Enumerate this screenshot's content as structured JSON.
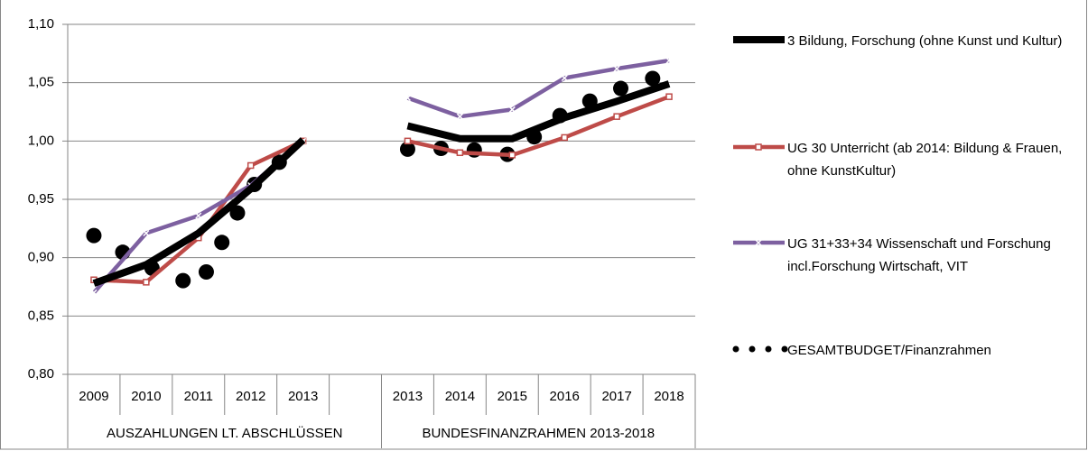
{
  "chart_data": {
    "type": "line",
    "categories": [
      "2009",
      "2010",
      "2011",
      "2012",
      "2013",
      null,
      "2013",
      "2014",
      "2015",
      "2016",
      "2017",
      "2018"
    ],
    "groups": [
      "AUSZAHLUNGEN LT. ABSCHLÜSSEN",
      "BUNDESFINANZRAHMEN 2013-2018"
    ],
    "ylim": [
      0.8,
      1.1
    ],
    "yticks": [
      {
        "value": 0.8,
        "label": "0,80"
      },
      {
        "value": 0.85,
        "label": "0,85"
      },
      {
        "value": 0.9,
        "label": "0,90"
      },
      {
        "value": 0.95,
        "label": "0,95"
      },
      {
        "value": 1.0,
        "label": "1,00"
      },
      {
        "value": 1.05,
        "label": "1,05"
      },
      {
        "value": 1.1,
        "label": "1,10"
      }
    ],
    "grid": true,
    "legend": "right",
    "series": [
      {
        "name": "3 Bildung, Forschung (ohne Kunst und Kultur)",
        "color": "#000000",
        "marker": "none",
        "style": "solid",
        "values": [
          0.878,
          0.894,
          0.921,
          0.959,
          1.001,
          null,
          1.013,
          1.002,
          1.002,
          1.02,
          1.034,
          1.049
        ]
      },
      {
        "name": "UG 30 Unterricht  (ab 2014: Bildung & Frauen, ohne KunstKultur)",
        "color": "#be4b48",
        "marker": "square",
        "style": "solid",
        "values": [
          0.881,
          0.879,
          0.917,
          0.979,
          1.0,
          null,
          1.0,
          0.99,
          0.988,
          1.003,
          1.021,
          1.038
        ]
      },
      {
        "name": "UG 31+33+34 Wissenschaft und Forschung incl.Forschung Wirtschaft, VIT",
        "color": "#7d60a0",
        "marker": "x",
        "style": "solid",
        "values": [
          0.87,
          0.921,
          0.936,
          0.962,
          1.0,
          null,
          1.037,
          1.021,
          1.027,
          1.054,
          1.062,
          1.069
        ]
      },
      {
        "name": "GESAMTBUDGET/Finanzrahmen",
        "color": "#000000",
        "marker": "none",
        "style": "dots",
        "values": [
          0.919,
          0.893,
          0.875,
          0.96,
          1.0,
          null,
          0.993,
          0.994,
          0.988,
          1.025,
          1.044,
          1.058
        ]
      }
    ]
  }
}
